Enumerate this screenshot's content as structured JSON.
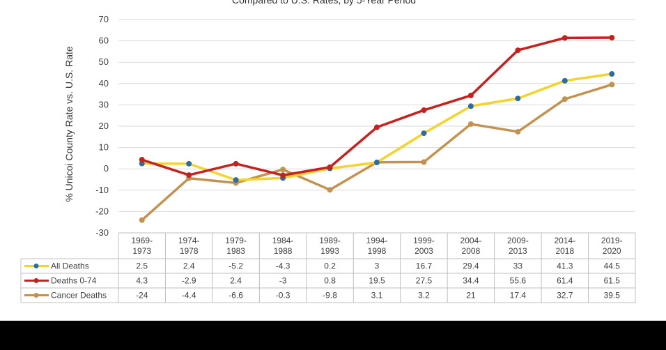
{
  "chart_data": {
    "type": "line",
    "title": "Compared to U.S. Rates, by 5-Year Period",
    "ylabel": "% Unicoi County Rate vs. U.S. Rate",
    "xlabel": "",
    "ylim": [
      -30,
      70
    ],
    "yticks": [
      70,
      60,
      50,
      40,
      30,
      20,
      10,
      0,
      -10,
      -20,
      -30
    ],
    "grid": true,
    "legend_placement": "data-table-left",
    "categories": [
      [
        "1969-",
        "1973"
      ],
      [
        "1974-",
        "1978"
      ],
      [
        "1979-",
        "1983"
      ],
      [
        "1984-",
        "1988"
      ],
      [
        "1989-",
        "1993"
      ],
      [
        "1994-",
        "1998"
      ],
      [
        "1999-",
        "2003"
      ],
      [
        "2004-",
        "2008"
      ],
      [
        "2009-",
        "2013"
      ],
      [
        "2014-",
        "2018"
      ],
      [
        "2019-",
        "2020"
      ]
    ],
    "series": [
      {
        "name": "All Deaths",
        "line_color": "#f5d328",
        "marker_color": "#2e6da4",
        "values": [
          2.5,
          2.4,
          -5.2,
          -4.3,
          0.2,
          3,
          16.7,
          29.4,
          33,
          41.3,
          44.5
        ],
        "labels": [
          "2.5",
          "2.4",
          "-5.2",
          "-4.3",
          "0.2",
          "3",
          "16.7",
          "29.4",
          "33",
          "41.3",
          "44.5"
        ]
      },
      {
        "name": "Deaths 0-74",
        "line_color": "#c8201e",
        "marker_color": "#c8201e",
        "values": [
          4.3,
          -2.9,
          2.4,
          -3,
          0.8,
          19.5,
          27.5,
          34.4,
          55.6,
          61.4,
          61.5
        ],
        "labels": [
          "4.3",
          "-2.9",
          "2.4",
          "-3",
          "0.8",
          "19.5",
          "27.5",
          "34.4",
          "55.6",
          "61.4",
          "61.5"
        ]
      },
      {
        "name": "Cancer Deaths",
        "line_color": "#c4924f",
        "marker_color": "#c4924f",
        "values": [
          -24,
          -4.4,
          -6.6,
          -0.3,
          -9.8,
          3.1,
          3.2,
          21,
          17.4,
          32.7,
          39.5
        ],
        "labels": [
          "-24",
          "-4.4",
          "-6.6",
          "-0.3",
          "-9.8",
          "3.1",
          "3.2",
          "21",
          "17.4",
          "32.7",
          "39.5"
        ]
      }
    ]
  },
  "colors": {
    "grid": "#d9d9d9",
    "table_border": "#bfbfbf",
    "bottom_bar": "#000000"
  }
}
